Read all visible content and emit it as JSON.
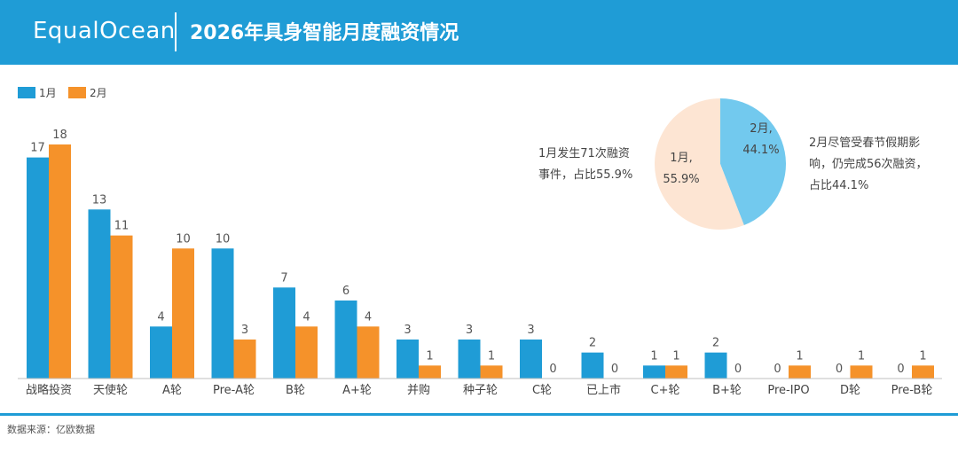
{
  "header": {
    "logo": "EqualOcean",
    "title": "2026年具身智能月度融资情况"
  },
  "colors": {
    "header_bg": "#1f9cd6",
    "series_jan": "#1f9cd6",
    "series_feb": "#f5922a",
    "pie_jan": "#fde5d3",
    "pie_feb": "#72c9ee"
  },
  "chart_data": [
    {
      "type": "bar",
      "categories": [
        "战略投资",
        "天使轮",
        "A轮",
        "Pre-A轮",
        "B轮",
        "A+轮",
        "并购",
        "种子轮",
        "C轮",
        "已上市",
        "C+轮",
        "B+轮",
        "Pre-IPO",
        "D轮",
        "Pre-B轮"
      ],
      "series": [
        {
          "name": "1月",
          "values": [
            17,
            13,
            4,
            10,
            7,
            6,
            3,
            3,
            3,
            2,
            1,
            2,
            0,
            0,
            0
          ]
        },
        {
          "name": "2月",
          "values": [
            18,
            11,
            10,
            3,
            4,
            4,
            1,
            1,
            0,
            0,
            1,
            0,
            1,
            1,
            1
          ]
        }
      ],
      "legend": "top-left",
      "grid": false
    },
    {
      "type": "pie",
      "slices": [
        {
          "name": "1月",
          "value": 55.9,
          "label_line1": "1月,",
          "label_line2": "55.9%"
        },
        {
          "name": "2月",
          "value": 44.1,
          "label_line1": "2月,",
          "label_line2": "44.1%"
        }
      ]
    }
  ],
  "annotations": {
    "jan_line1": "1月发生71次融资",
    "jan_line2": "事件，占比55.9%",
    "feb_line1": "2月尽管受春节假期影",
    "feb_line2": "响，仍完成56次融资，",
    "feb_line3": "占比44.1%"
  },
  "footer": {
    "source": "数据来源：亿欧数据"
  }
}
